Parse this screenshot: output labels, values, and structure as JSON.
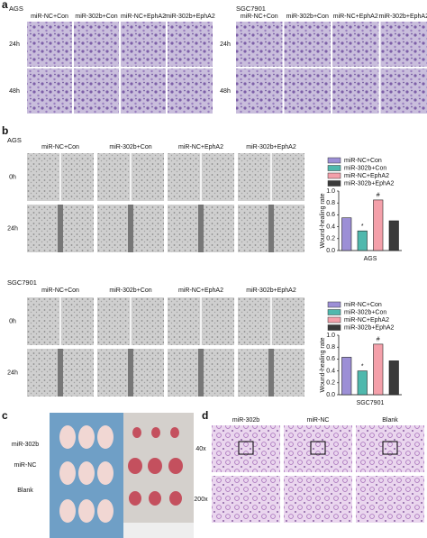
{
  "panels": {
    "a": {
      "label": "a",
      "groups": [
        {
          "name": "AGS"
        },
        {
          "name": "SGC7901"
        }
      ],
      "columns": [
        "miR-NC+Con",
        "miR-302b+Con",
        "miR-NC+EphA2",
        "miR-302b+EphA2"
      ],
      "rows": [
        "24h",
        "48h"
      ]
    },
    "b": {
      "label": "b",
      "groups": [
        {
          "name": "AGS"
        },
        {
          "name": "SGC7901"
        }
      ],
      "columns": [
        "miR-NC+Con",
        "miR-302b+Con",
        "miR-NC+EphA2",
        "miR-302b+EphA2"
      ],
      "rows": [
        "0h",
        "24h"
      ]
    },
    "c": {
      "label": "c",
      "rows": [
        "miR-302b",
        "miR-NC",
        "Blank"
      ]
    },
    "d": {
      "label": "d",
      "columns": [
        "miR-302b",
        "miR-NC",
        "Blank"
      ],
      "rows": [
        "40x",
        "200x"
      ]
    }
  },
  "chart_data": [
    {
      "type": "bar",
      "xlabel": "AGS",
      "ylabel": "Wound-healing rate",
      "categories": [
        "miR-NC+Con",
        "miR-302b+Con",
        "miR-NC+EphA2",
        "miR-302b+EphA2"
      ],
      "values": [
        0.55,
        0.33,
        0.85,
        0.5
      ],
      "annotations": [
        null,
        "*",
        "#",
        null
      ],
      "colors": [
        "#9c8fd6",
        "#4fb8ad",
        "#f4a0aa",
        "#3a3a3a"
      ],
      "ylim": [
        0,
        1
      ],
      "yticks": [
        {
          "value": 0,
          "label": "0.0"
        },
        0.2,
        0.4,
        0.6,
        0.8,
        {
          "value": 1,
          "label": "1.0"
        }
      ]
    },
    {
      "type": "bar",
      "xlabel": "SGC7901",
      "ylabel": "Wound-healing rate",
      "categories": [
        "miR-NC+Con",
        "miR-302b+Con",
        "miR-NC+EphA2",
        "miR-302b+EphA2"
      ],
      "values": [
        0.63,
        0.4,
        0.85,
        0.57
      ],
      "annotations": [
        null,
        "*",
        "#",
        null
      ],
      "colors": [
        "#9c8fd6",
        "#4fb8ad",
        "#f4a0aa",
        "#3a3a3a"
      ],
      "ylim": [
        0,
        1
      ],
      "yticks": [
        {
          "value": 0,
          "label": "0.0"
        },
        0.2,
        0.4,
        0.6,
        0.8,
        {
          "value": 1,
          "label": "1.0"
        }
      ]
    }
  ]
}
